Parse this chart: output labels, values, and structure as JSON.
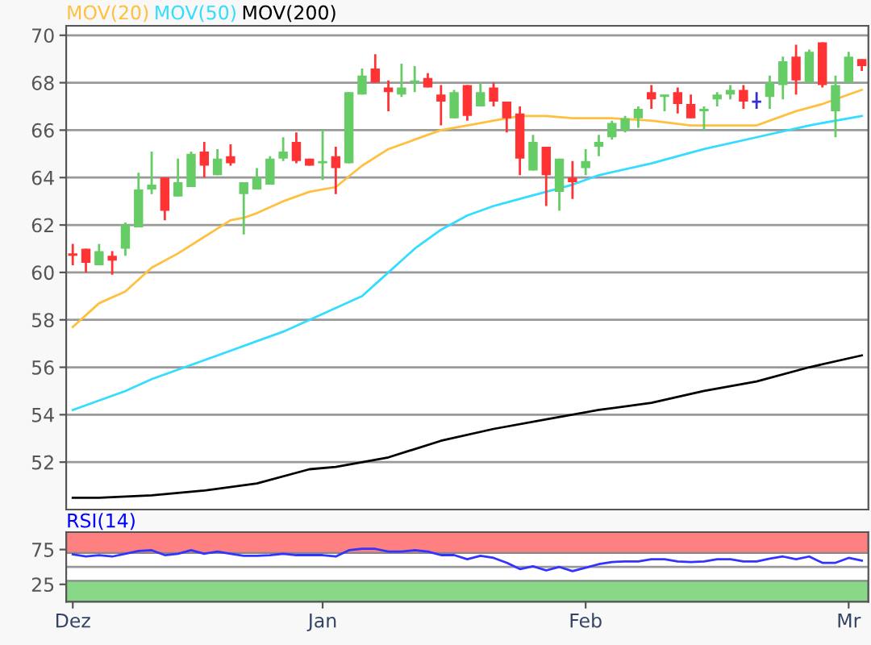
{
  "chart_data": [
    {
      "type": "candlestick",
      "categories": [
        null,
        null,
        null,
        null,
        null,
        null,
        null,
        null,
        null,
        null,
        null,
        null,
        null,
        null,
        null,
        null,
        null,
        null,
        null,
        null,
        null,
        null,
        null,
        null,
        null,
        null,
        null,
        null,
        null,
        null,
        null,
        null,
        null,
        null,
        null,
        null,
        null,
        null,
        null,
        null,
        null,
        null,
        null,
        null,
        null,
        null,
        null,
        null,
        null,
        null,
        null,
        null,
        null,
        null,
        null,
        null,
        null,
        null,
        null,
        null,
        null
      ],
      "ohlc": [
        [
          60.8,
          61.2,
          60.3,
          60.7
        ],
        [
          61.0,
          61.0,
          60.0,
          60.4
        ],
        [
          60.3,
          61.2,
          60.3,
          60.9
        ],
        [
          60.7,
          60.9,
          59.9,
          60.5
        ],
        [
          61.0,
          62.1,
          60.7,
          62.0
        ],
        [
          61.9,
          64.2,
          61.9,
          63.5
        ],
        [
          63.5,
          65.1,
          63.3,
          63.7
        ],
        [
          64.0,
          64.0,
          62.2,
          62.6
        ],
        [
          63.2,
          64.8,
          63.2,
          63.8
        ],
        [
          63.6,
          65.1,
          63.6,
          65.0
        ],
        [
          65.1,
          65.5,
          64.0,
          64.5
        ],
        [
          64.1,
          65.2,
          64.1,
          64.8
        ],
        [
          64.9,
          65.4,
          64.5,
          64.6
        ],
        [
          63.3,
          63.8,
          61.6,
          63.8
        ],
        [
          63.5,
          64.4,
          63.5,
          64.0
        ],
        [
          63.7,
          64.9,
          63.7,
          64.8
        ],
        [
          64.8,
          65.7,
          64.7,
          65.1
        ],
        [
          65.5,
          65.9,
          64.6,
          64.7
        ],
        [
          64.8,
          64.8,
          64.5,
          64.5
        ],
        [
          64.6,
          66.0,
          63.9,
          64.7
        ],
        [
          64.9,
          65.3,
          63.3,
          64.4
        ],
        [
          64.6,
          67.6,
          64.6,
          67.6
        ],
        [
          67.5,
          68.6,
          67.5,
          68.3
        ],
        [
          68.6,
          69.2,
          68.0,
          68.0
        ],
        [
          67.8,
          68.1,
          66.8,
          67.6
        ],
        [
          67.5,
          68.8,
          67.4,
          67.8
        ],
        [
          68.0,
          68.7,
          67.6,
          68.1
        ],
        [
          68.2,
          68.4,
          67.8,
          67.8
        ],
        [
          67.5,
          67.9,
          66.2,
          67.2
        ],
        [
          66.5,
          67.7,
          66.5,
          67.6
        ],
        [
          67.9,
          67.9,
          66.4,
          66.6
        ],
        [
          67.0,
          68.0,
          67.0,
          67.6
        ],
        [
          67.8,
          68.0,
          67.0,
          67.2
        ],
        [
          67.2,
          67.2,
          65.9,
          66.5
        ],
        [
          66.7,
          67.0,
          64.1,
          64.8
        ],
        [
          64.3,
          65.8,
          64.3,
          65.5
        ],
        [
          65.3,
          65.3,
          62.8,
          64.1
        ],
        [
          63.4,
          64.8,
          62.6,
          64.8
        ],
        [
          64.0,
          64.7,
          63.1,
          63.8
        ],
        [
          64.4,
          65.2,
          64.1,
          64.7
        ],
        [
          65.3,
          65.8,
          64.9,
          65.5
        ],
        [
          65.7,
          66.4,
          65.6,
          66.3
        ],
        [
          66.0,
          66.6,
          65.9,
          66.5
        ],
        [
          66.5,
          67.0,
          66.1,
          66.9
        ],
        [
          67.6,
          67.9,
          66.9,
          67.3
        ],
        [
          67.4,
          67.5,
          66.8,
          67.5
        ],
        [
          67.6,
          67.8,
          66.7,
          67.1
        ],
        [
          67.1,
          67.5,
          66.5,
          66.5
        ],
        [
          66.8,
          67.0,
          66.0,
          66.9
        ],
        [
          67.3,
          67.6,
          67.0,
          67.5
        ],
        [
          67.5,
          67.9,
          67.3,
          67.7
        ],
        [
          67.7,
          67.9,
          66.9,
          67.2
        ],
        [
          67.2,
          67.6,
          66.9,
          67.2
        ],
        [
          67.4,
          68.3,
          66.9,
          68.0
        ],
        [
          67.9,
          69.1,
          67.3,
          68.9
        ],
        [
          69.1,
          69.6,
          67.5,
          68.1
        ],
        [
          68.0,
          69.4,
          68.0,
          69.3
        ],
        [
          69.7,
          69.7,
          67.8,
          67.9
        ],
        [
          66.8,
          68.3,
          65.7,
          67.9
        ],
        [
          68.0,
          69.3,
          68.0,
          69.1
        ],
        [
          69.0,
          69.0,
          68.5,
          68.7
        ]
      ],
      "colors": [
        "#ff3333",
        "#ff3333",
        "#66cc66",
        "#ff3333",
        "#66cc66",
        "#66cc66",
        "#66cc66",
        "#ff3333",
        "#66cc66",
        "#66cc66",
        "#ff3333",
        "#66cc66",
        "#ff3333",
        "#66cc66",
        "#66cc66",
        "#66cc66",
        "#66cc66",
        "#ff3333",
        "#ff3333",
        "#66cc66",
        "#ff3333",
        "#66cc66",
        "#66cc66",
        "#ff3333",
        "#ff3333",
        "#66cc66",
        "#66cc66",
        "#ff3333",
        "#ff3333",
        "#66cc66",
        "#ff3333",
        "#66cc66",
        "#ff3333",
        "#ff3333",
        "#ff3333",
        "#66cc66",
        "#ff3333",
        "#66cc66",
        "#ff3333",
        "#66cc66",
        "#66cc66",
        "#66cc66",
        "#66cc66",
        "#66cc66",
        "#ff3333",
        "#66cc66",
        "#ff3333",
        "#ff3333",
        "#66cc66",
        "#66cc66",
        "#66cc66",
        "#ff3333",
        "#3333cc",
        "#66cc66",
        "#66cc66",
        "#ff3333",
        "#66cc66",
        "#ff3333",
        "#66cc66",
        "#66cc66",
        "#ff3333"
      ],
      "series": [
        {
          "type": "line",
          "name": "MOV(20)",
          "color": "#ffc040",
          "values": [
            57.7,
            null,
            58.7,
            null,
            59.2,
            null,
            60.2,
            null,
            60.8,
            null,
            61.5,
            null,
            62.2,
            62.3,
            62.5,
            null,
            63.0,
            null,
            63.4,
            null,
            63.6,
            null,
            64.5,
            null,
            65.2,
            null,
            65.6,
            null,
            66.0,
            null,
            66.2,
            null,
            66.4,
            null,
            66.6,
            null,
            66.6,
            null,
            66.5,
            null,
            66.5,
            66.5,
            null,
            null,
            66.4,
            null,
            null,
            66.2,
            null,
            null,
            null,
            null,
            66.2,
            66.4,
            null,
            66.8,
            null,
            67.1,
            null,
            67.5,
            67.7
          ]
        },
        {
          "type": "line",
          "name": "MOV(50)",
          "color": "#33ddff",
          "values": [
            54.2,
            null,
            54.6,
            null,
            55.0,
            null,
            55.5,
            null,
            55.9,
            null,
            56.3,
            null,
            56.7,
            null,
            57.1,
            null,
            57.5,
            null,
            58.0,
            null,
            58.5,
            null,
            59.0,
            null,
            60.0,
            null,
            61.0,
            null,
            61.8,
            null,
            62.4,
            null,
            62.8,
            null,
            63.1,
            null,
            63.4,
            null,
            63.7,
            null,
            64.1,
            null,
            null,
            null,
            64.6,
            null,
            null,
            null,
            65.2,
            null,
            null,
            null,
            65.7,
            null,
            null,
            null,
            66.2,
            null,
            null,
            null,
            66.6
          ]
        },
        {
          "type": "line",
          "name": "MOV(200)",
          "color": "#000000",
          "values": [
            50.5,
            null,
            50.5,
            null,
            null,
            null,
            50.6,
            null,
            null,
            null,
            50.8,
            null,
            null,
            null,
            51.1,
            null,
            null,
            null,
            51.7,
            null,
            51.8,
            null,
            null,
            null,
            52.2,
            null,
            null,
            null,
            52.9,
            null,
            null,
            null,
            53.4,
            null,
            null,
            null,
            53.8,
            null,
            null,
            null,
            54.2,
            null,
            null,
            null,
            54.5,
            null,
            null,
            null,
            55.0,
            null,
            null,
            null,
            55.4,
            null,
            null,
            null,
            56.0,
            null,
            null,
            null,
            56.5
          ]
        }
      ],
      "ylim": [
        50,
        70.4
      ],
      "yticks": [
        52,
        54,
        56,
        58,
        60,
        62,
        64,
        66,
        68,
        70
      ],
      "grid": "y",
      "legend": "top left",
      "tick_labels": "y"
    },
    {
      "type": "line",
      "title": "RSI(14)",
      "categories": [
        "Dez",
        null,
        null,
        null,
        null,
        null,
        null,
        null,
        null,
        null,
        null,
        null,
        null,
        null,
        null,
        null,
        null,
        null,
        null,
        "Jan",
        null,
        null,
        null,
        null,
        null,
        null,
        null,
        null,
        null,
        null,
        null,
        null,
        null,
        null,
        null,
        null,
        null,
        null,
        null,
        "Feb",
        null,
        null,
        null,
        null,
        null,
        null,
        null,
        null,
        null,
        null,
        null,
        null,
        null,
        null,
        null,
        null,
        null,
        null,
        null,
        "Mr",
        null
      ],
      "series": [
        {
          "color": "#3333ff",
          "values": [
            68,
            65,
            67,
            65,
            69,
            73,
            74,
            67,
            69,
            74,
            69,
            72,
            69,
            66,
            66,
            67,
            69,
            67,
            67,
            67,
            65,
            74,
            76,
            76,
            72,
            72,
            74,
            72,
            67,
            67,
            61,
            66,
            63,
            56,
            47,
            51,
            45,
            50,
            44,
            49,
            54,
            57,
            58,
            58,
            61,
            61,
            58,
            57,
            58,
            61,
            61,
            58,
            58,
            62,
            65,
            61,
            65,
            56,
            56,
            63,
            59
          ]
        }
      ],
      "ylim": [
        0,
        100
      ],
      "yticks": [
        25,
        75
      ],
      "bands": [
        {
          "axis": "y",
          "from": 70,
          "to": 100,
          "color": "#ff8080"
        },
        {
          "axis": "y",
          "from": 0,
          "to": 30,
          "color": "#88d888"
        }
      ],
      "ref_lines": [
        {
          "axis": "y",
          "value": 50,
          "color": "#999999"
        }
      ],
      "grid": false
    }
  ]
}
